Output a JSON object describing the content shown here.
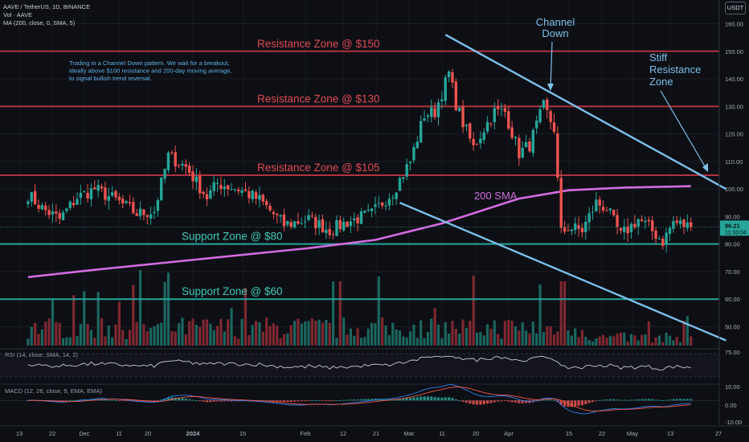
{
  "header": {
    "symbol_line": "AAVE / TetherUS, 1D, BINANCE",
    "vol_line": "Vol · AAVE",
    "ma_line": "MA (200, close, 0, SMA, 5)",
    "currency": "USDT"
  },
  "price_axis": {
    "ticks": [
      "160.00",
      "150.00",
      "140.00",
      "130.00",
      "120.00",
      "110.00",
      "100.00",
      "90.00",
      "80.00",
      "70.00",
      "60.00",
      "50.00"
    ],
    "tick_values": [
      160,
      150,
      140,
      130,
      120,
      110,
      100,
      90,
      80,
      70,
      60,
      50
    ],
    "last_price": "86.21",
    "countdown": "11:33:04"
  },
  "rsi_axis": {
    "ticks": [
      "75.00"
    ]
  },
  "macd_axis": {
    "ticks": [
      "10.00",
      "0.00",
      "-10.00"
    ]
  },
  "time_axis": {
    "labels": [
      "13",
      "22",
      "Dec",
      "11",
      "20",
      "2024",
      "15",
      "Feb",
      "12",
      "21",
      "Mar",
      "11",
      "20",
      "Apr",
      "15",
      "22",
      "May",
      "13",
      "27"
    ],
    "bold": [
      "2024"
    ]
  },
  "pane_labels": {
    "rsi": "RSI (14, close, SMA, 14, 2)",
    "macd": "MACD (12, 26, close, 9, EMA, EMA)"
  },
  "annotations": {
    "zones": [
      {
        "label": "Resistance Zone @ $150",
        "price": 150,
        "type": "resistance"
      },
      {
        "label": "Resistance Zone @ $130",
        "price": 130,
        "type": "resistance"
      },
      {
        "label": "Resistance Zone @ $105",
        "price": 105,
        "type": "resistance"
      },
      {
        "label": "Support Zone @ $80",
        "price": 80,
        "type": "support"
      },
      {
        "label": "Support Zone @ $60",
        "price": 60,
        "type": "support"
      }
    ],
    "note": [
      "Trading in a Channel Down pattern. We wait for a breakout,",
      "ideally above $100 resistance and 200-day moving average,",
      "to signal bullish trend reversal."
    ],
    "channel_label": [
      "Channel",
      "Down"
    ],
    "stiff_label": [
      "Stiff",
      "Resistance",
      "Zone"
    ],
    "sma_label": "200 SMA"
  },
  "colors": {
    "background": "#0d0f14",
    "up": "#26a69a",
    "down": "#ef5350",
    "resistance": "#b2323f",
    "resistance_text": "#e04a55",
    "support": "#26a69a",
    "support_text": "#3fc9b5",
    "channel": "#7cc0ea",
    "sma": "#d36ce0",
    "note_text": "#5fb0e8",
    "axis_text": "#a9acb5"
  },
  "chart_data": [
    {
      "type": "candlestick",
      "title": "AAVE / TetherUS, 1D, BINANCE",
      "ylim": [
        45,
        162
      ],
      "x_range": [
        "2023-11-13",
        "2024-05-27"
      ],
      "close_anchors": [
        {
          "t": "2023-11-13",
          "v": 98
        },
        {
          "t": "2023-11-17",
          "v": 93
        },
        {
          "t": "2023-11-22",
          "v": 89
        },
        {
          "t": "2023-11-27",
          "v": 97
        },
        {
          "t": "2023-12-02",
          "v": 100
        },
        {
          "t": "2023-12-08",
          "v": 96
        },
        {
          "t": "2023-12-14",
          "v": 91
        },
        {
          "t": "2023-12-19",
          "v": 92
        },
        {
          "t": "2023-12-23",
          "v": 112
        },
        {
          "t": "2023-12-28",
          "v": 108
        },
        {
          "t": "2024-01-03",
          "v": 97
        },
        {
          "t": "2024-01-06",
          "v": 102
        },
        {
          "t": "2024-01-12",
          "v": 100
        },
        {
          "t": "2024-01-18",
          "v": 96
        },
        {
          "t": "2024-01-25",
          "v": 87
        },
        {
          "t": "2024-02-01",
          "v": 89
        },
        {
          "t": "2024-02-07",
          "v": 85
        },
        {
          "t": "2024-02-12",
          "v": 88
        },
        {
          "t": "2024-02-19",
          "v": 91
        },
        {
          "t": "2024-02-25",
          "v": 99
        },
        {
          "t": "2024-03-01",
          "v": 110
        },
        {
          "t": "2024-03-05",
          "v": 127
        },
        {
          "t": "2024-03-08",
          "v": 128
        },
        {
          "t": "2024-03-12",
          "v": 142
        },
        {
          "t": "2024-03-14",
          "v": 131
        },
        {
          "t": "2024-03-16",
          "v": 124
        },
        {
          "t": "2024-03-19",
          "v": 115
        },
        {
          "t": "2024-03-22",
          "v": 122
        },
        {
          "t": "2024-03-25",
          "v": 128
        },
        {
          "t": "2024-03-28",
          "v": 128
        },
        {
          "t": "2024-04-01",
          "v": 113
        },
        {
          "t": "2024-04-04",
          "v": 116
        },
        {
          "t": "2024-04-08",
          "v": 130
        },
        {
          "t": "2024-04-11",
          "v": 122
        },
        {
          "t": "2024-04-13",
          "v": 84
        },
        {
          "t": "2024-04-15",
          "v": 86
        },
        {
          "t": "2024-04-19",
          "v": 85
        },
        {
          "t": "2024-04-23",
          "v": 95
        },
        {
          "t": "2024-04-26",
          "v": 93
        },
        {
          "t": "2024-04-30",
          "v": 83
        },
        {
          "t": "2024-05-05",
          "v": 89
        },
        {
          "t": "2024-05-08",
          "v": 86
        },
        {
          "t": "2024-05-12",
          "v": 81
        },
        {
          "t": "2024-05-15",
          "v": 88
        },
        {
          "t": "2024-05-20",
          "v": 86.21
        }
      ],
      "sma200": [
        {
          "t": "2023-11-13",
          "v": 68
        },
        {
          "t": "2023-12-01",
          "v": 70.5
        },
        {
          "t": "2024-01-01",
          "v": 74.5
        },
        {
          "t": "2024-02-01",
          "v": 78.5
        },
        {
          "t": "2024-02-20",
          "v": 81.5
        },
        {
          "t": "2024-03-10",
          "v": 87.5
        },
        {
          "t": "2024-04-01",
          "v": 96.5
        },
        {
          "t": "2024-04-15",
          "v": 99.5
        },
        {
          "t": "2024-05-01",
          "v": 100.5
        },
        {
          "t": "2024-05-20",
          "v": 101
        }
      ],
      "channel_down": [
        {
          "from": {
            "t": "2024-03-11",
            "v": 156
          },
          "to": {
            "t": "2024-05-30",
            "v": 100
          }
        },
        {
          "from": {
            "t": "2024-02-27",
            "v": 95
          },
          "to": {
            "t": "2024-05-30",
            "v": 45
          }
        }
      ],
      "last_price": 86.21
    },
    {
      "type": "bar",
      "title": "Vol · AAVE",
      "note": "relative volume histogram under the price pane"
    },
    {
      "type": "line",
      "title": "RSI (14, close, SMA, 14, 2)",
      "ylim": [
        0,
        100
      ],
      "y_ticks": [
        75
      ]
    },
    {
      "type": "line",
      "title": "MACD (12, 26, close, 9, EMA, EMA)",
      "y_ticks": [
        10,
        0,
        -10
      ],
      "ylim": [
        -14,
        12
      ]
    }
  ]
}
